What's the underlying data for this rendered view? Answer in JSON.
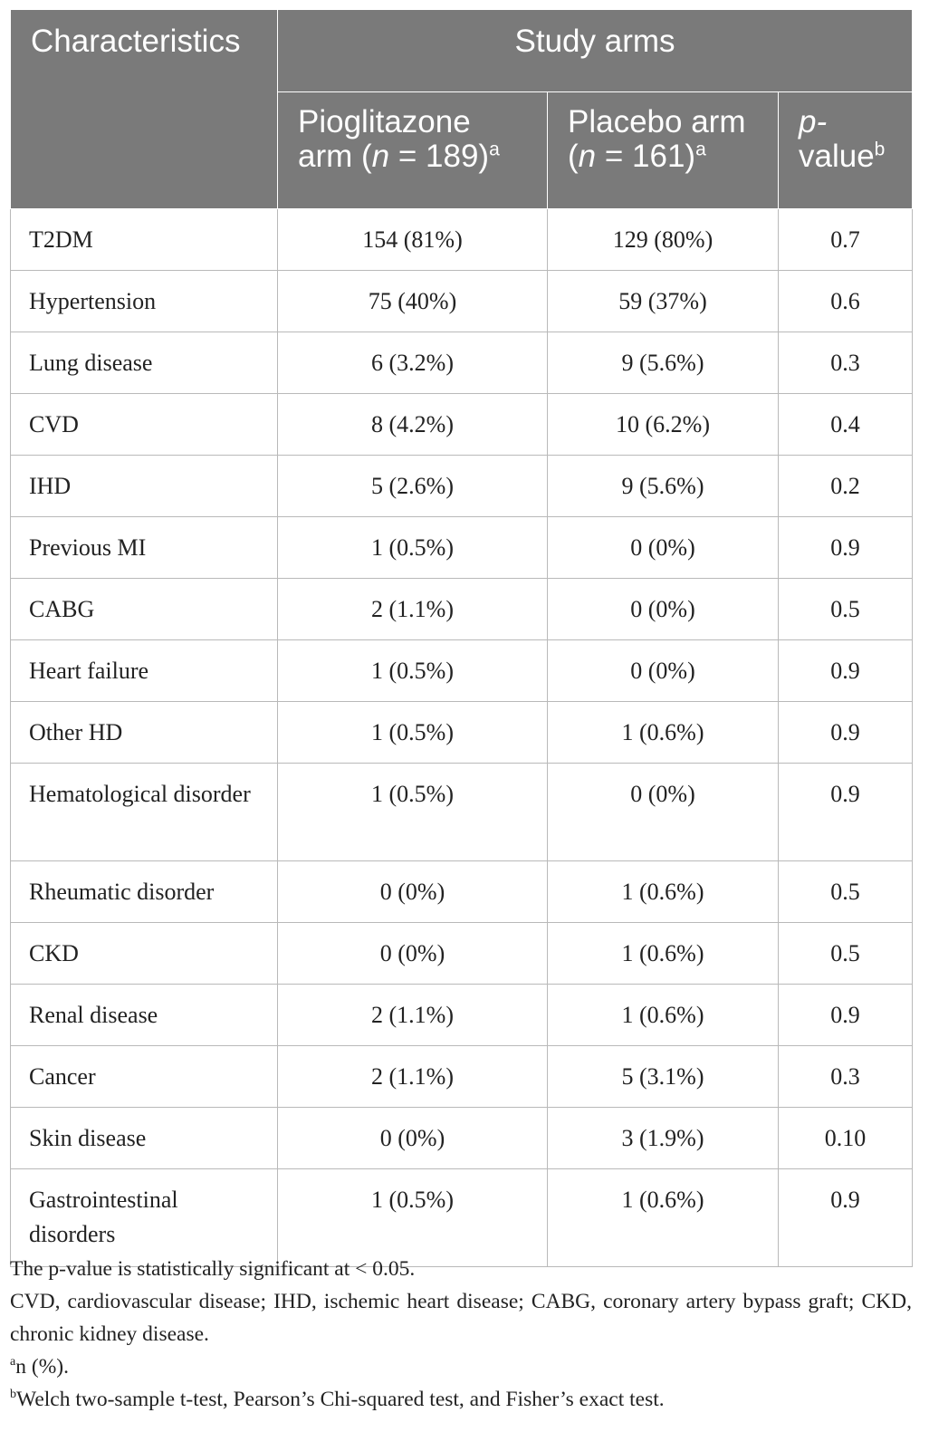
{
  "table": {
    "col_characteristics": "Characteristics",
    "col_study_arms": "Study arms",
    "pio": {
      "line1": "Pioglitazone",
      "line2a": "arm (",
      "n": "n",
      "line2b": " = 189)",
      "sup": "a"
    },
    "pla": {
      "line1": "Placebo arm",
      "line2a": "(",
      "n": "n",
      "line2b": " = 161)",
      "sup": "a"
    },
    "pval": {
      "line1": "p-",
      "line2": "value",
      "sup": "b"
    },
    "rows": [
      {
        "label": "T2DM",
        "pio": "154 (81%)",
        "pla": "129 (80%)",
        "p": "0.7"
      },
      {
        "label": "Hypertension",
        "pio": "75 (40%)",
        "pla": "59 (37%)",
        "p": "0.6"
      },
      {
        "label": "Lung disease",
        "pio": "6 (3.2%)",
        "pla": "9 (5.6%)",
        "p": "0.3"
      },
      {
        "label": "CVD",
        "pio": "8 (4.2%)",
        "pla": "10 (6.2%)",
        "p": "0.4"
      },
      {
        "label": "IHD",
        "pio": "5 (2.6%)",
        "pla": "9 (5.6%)",
        "p": "0.2"
      },
      {
        "label": "Previous MI",
        "pio": "1 (0.5%)",
        "pla": "0 (0%)",
        "p": "0.9"
      },
      {
        "label": "CABG",
        "pio": "2 (1.1%)",
        "pla": "0 (0%)",
        "p": "0.5"
      },
      {
        "label": "Heart failure",
        "pio": "1 (0.5%)",
        "pla": "0 (0%)",
        "p": "0.9"
      },
      {
        "label": "Other HD",
        "pio": "1 (0.5%)",
        "pla": "1 (0.6%)",
        "p": "0.9"
      },
      {
        "label": "Hematological disorder",
        "pio": "1 (0.5%)",
        "pla": "0 (0%)",
        "p": "0.9"
      },
      {
        "label": "Rheumatic disorder",
        "pio": "0 (0%)",
        "pla": "1 (0.6%)",
        "p": "0.5"
      },
      {
        "label": "CKD",
        "pio": "0 (0%)",
        "pla": "1 (0.6%)",
        "p": "0.5"
      },
      {
        "label": "Renal disease",
        "pio": "2 (1.1%)",
        "pla": "1 (0.6%)",
        "p": "0.9"
      },
      {
        "label": "Cancer",
        "pio": "2 (1.1%)",
        "pla": "5 (3.1%)",
        "p": "0.3"
      },
      {
        "label": "Skin disease",
        "pio": "0 (0%)",
        "pla": "3 (1.9%)",
        "p": "0.10"
      },
      {
        "label": "Gastrointestinal disorders",
        "pio": "1 (0.5%)",
        "pla": "1 (0.6%)",
        "p": "0.9"
      }
    ]
  },
  "footnotes": {
    "significance": "The p-value is statistically significant at < 0.05.",
    "abbreviations": "CVD, cardiovascular disease; IHD, ischemic heart disease; CABG, coronary artery bypass graft; CKD, chronic kidney disease.",
    "a_mark": "a",
    "a_text": "n (%).",
    "b_mark": "b",
    "b_text": "Welch two-sample t-test, Pearson’s Chi-squared test, and Fisher’s exact test."
  }
}
